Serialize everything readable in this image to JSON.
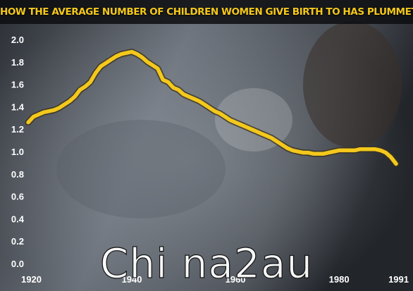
{
  "chart_data": {
    "type": "line",
    "title": "HOW THE AVERAGE NUMBER OF CHILDREN WOMEN GIVE BIRTH TO HAS PLUMMETTED",
    "x_ticks": [
      "1920",
      "1940",
      "1960",
      "1980",
      "1991"
    ],
    "y_ticks": [
      "2.0",
      "1.8",
      "1.6",
      "1.4",
      "1.2",
      "1.0",
      "0.8",
      "0.6",
      "0.4",
      "0.2",
      "0.0"
    ],
    "xlim": [
      1920,
      1991
    ],
    "ylim": [
      0,
      2.0
    ],
    "grid": false,
    "legend": "none",
    "line_color": "#f4c81c",
    "series": [
      {
        "x": [
          1920,
          1921,
          1922,
          1923,
          1924,
          1925,
          1926,
          1927,
          1928,
          1929,
          1930,
          1931,
          1932,
          1933,
          1934,
          1935,
          1936,
          1937,
          1938,
          1939,
          1940,
          1941,
          1942,
          1943,
          1944,
          1945,
          1946,
          1947,
          1948,
          1949,
          1950,
          1951,
          1952,
          1953,
          1954,
          1955,
          1956,
          1957,
          1958,
          1959,
          1960,
          1961,
          1962,
          1963,
          1964,
          1965,
          1966,
          1967,
          1968,
          1969,
          1970,
          1971,
          1972,
          1973,
          1974,
          1975,
          1976,
          1977,
          1978,
          1979,
          1980,
          1981,
          1982,
          1983,
          1984,
          1985,
          1986,
          1987,
          1988,
          1989,
          1990,
          1991
        ],
        "values": [
          1.26,
          1.31,
          1.33,
          1.35,
          1.36,
          1.37,
          1.39,
          1.42,
          1.45,
          1.49,
          1.55,
          1.58,
          1.62,
          1.7,
          1.76,
          1.79,
          1.82,
          1.85,
          1.87,
          1.88,
          1.89,
          1.87,
          1.84,
          1.8,
          1.77,
          1.74,
          1.64,
          1.62,
          1.57,
          1.55,
          1.51,
          1.49,
          1.47,
          1.45,
          1.42,
          1.39,
          1.36,
          1.34,
          1.31,
          1.28,
          1.26,
          1.24,
          1.22,
          1.2,
          1.18,
          1.16,
          1.14,
          1.12,
          1.09,
          1.06,
          1.03,
          1.01,
          1.0,
          0.99,
          0.99,
          0.98,
          0.98,
          0.98,
          0.99,
          1.0,
          1.01,
          1.01,
          1.01,
          1.01,
          1.02,
          1.02,
          1.02,
          1.02,
          1.01,
          0.99,
          0.95,
          0.89
        ]
      }
    ]
  },
  "watermark": "Chi na2au"
}
